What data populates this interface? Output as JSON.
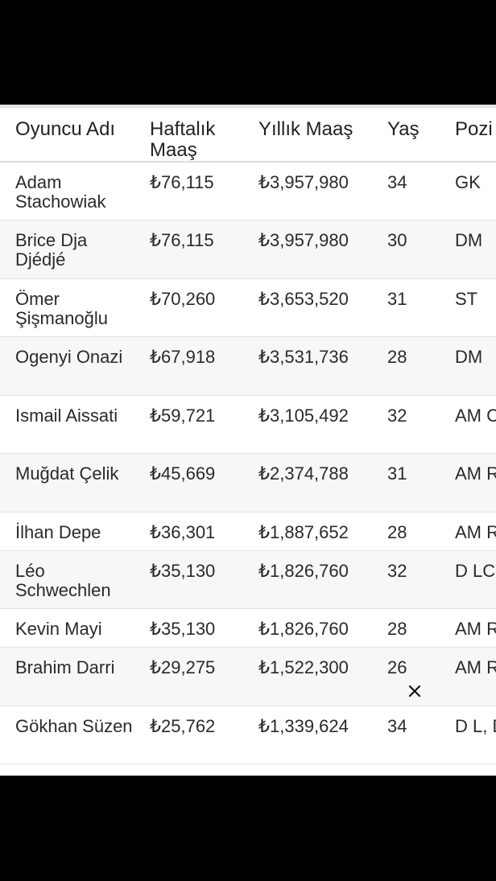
{
  "table": {
    "headers": {
      "name": "Oyuncu Adı",
      "weekly": "Haftalık Maaş",
      "yearly": "Yıllık Maaş",
      "age": "Yaş",
      "position": "Pozi"
    },
    "rows": [
      {
        "name": "Adam Stachowiak",
        "weekly": "₺76,115",
        "yearly": "₺3,957,980",
        "age": "34",
        "position": "GK"
      },
      {
        "name": "Brice Dja Djédjé",
        "weekly": "₺76,115",
        "yearly": "₺3,957,980",
        "age": "30",
        "position": "DM"
      },
      {
        "name": "Ömer Şişmanoğlu",
        "weekly": "₺70,260",
        "yearly": "₺3,653,520",
        "age": "31",
        "position": "ST"
      },
      {
        "name": "Ogenyi Onazi",
        "weekly": "₺67,918",
        "yearly": "₺3,531,736",
        "age": "28",
        "position": "DM"
      },
      {
        "name": "Ismail Aissati",
        "weekly": "₺59,721",
        "yearly": "₺3,105,492",
        "age": "32",
        "position": "AM C"
      },
      {
        "name": "Muğdat Çelik",
        "weekly": "₺45,669",
        "yearly": "₺2,374,788",
        "age": "31",
        "position": "AM R"
      },
      {
        "name": "İlhan Depe",
        "weekly": "₺36,301",
        "yearly": "₺1,887,652",
        "age": "28",
        "position": "AM R"
      },
      {
        "name": "Léo Schwechlen",
        "weekly": "₺35,130",
        "yearly": "₺1,826,760",
        "age": "32",
        "position": "D LC"
      },
      {
        "name": "Kevin Mayi",
        "weekly": "₺35,130",
        "yearly": "₺1,826,760",
        "age": "28",
        "position": "AM R"
      },
      {
        "name": "Brahim Darri",
        "weekly": "₺29,275",
        "yearly": "₺1,522,300",
        "age": "26",
        "position": "AM R"
      },
      {
        "name": "Gökhan Süzen",
        "weekly": "₺25,762",
        "yearly": "₺1,339,624",
        "age": "34",
        "position": "D L, D"
      }
    ]
  },
  "icons": {
    "close": "close-icon"
  }
}
